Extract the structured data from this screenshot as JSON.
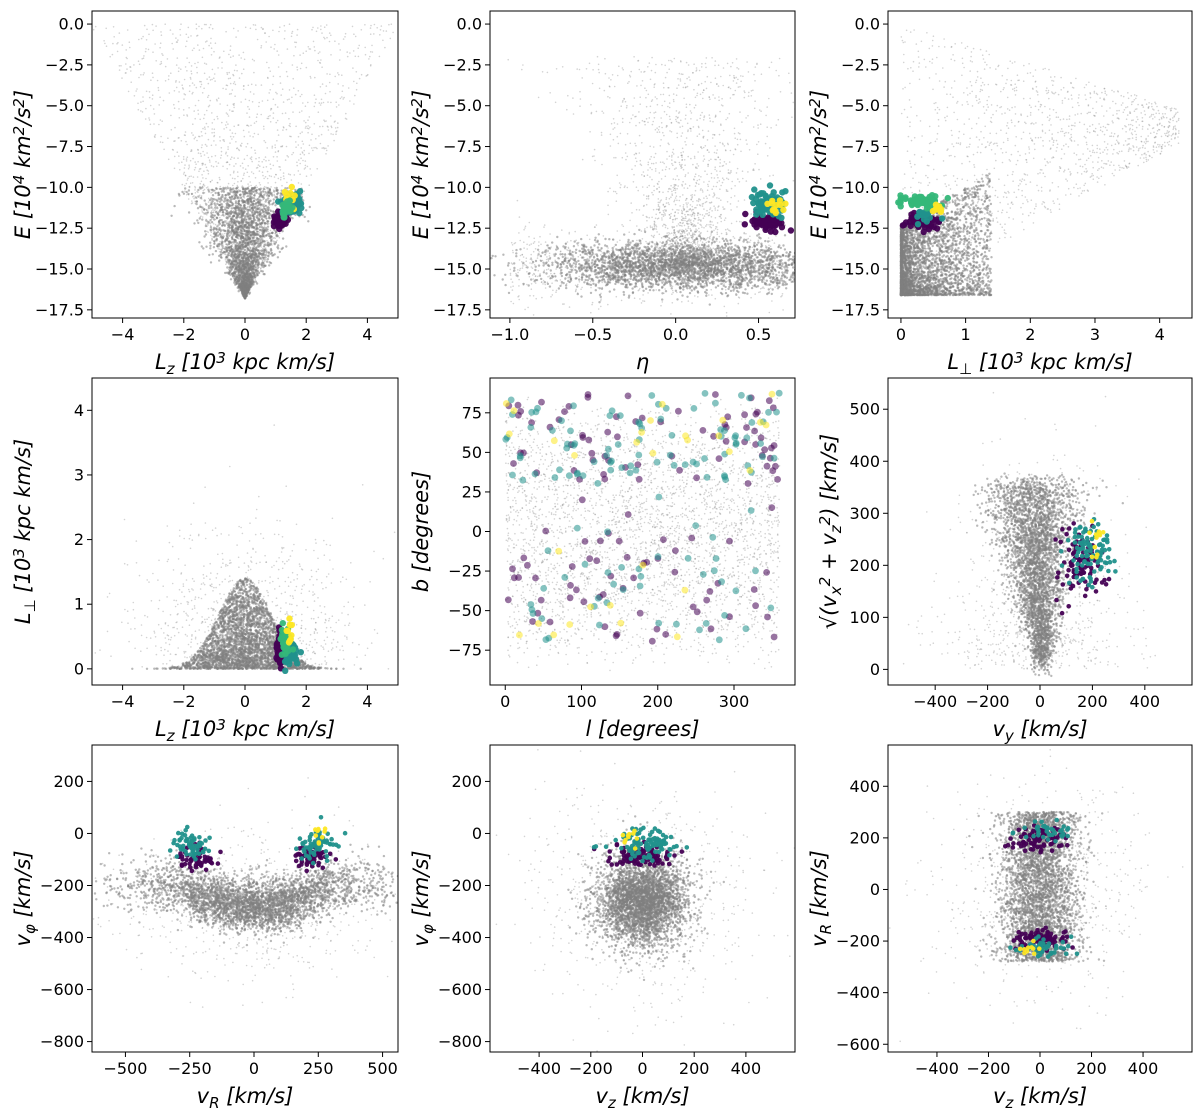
{
  "figure": {
    "title": "",
    "panel_count": 9
  },
  "colors": {
    "background_stars": "#808080",
    "cluster_purple": "#440154",
    "cluster_teal": "#21918c",
    "cluster_green": "#35b779",
    "cluster_yellow": "#fde725"
  },
  "chart_data": [
    {
      "id": "p1",
      "type": "scatter",
      "xlabel": "L_z [10^3 kpc km/s]",
      "ylabel": "E [10^4 km^2/s^2]",
      "xlim": [
        -5,
        5
      ],
      "ylim": [
        -18,
        0.8
      ],
      "xticks": [
        -4,
        -2,
        0,
        2,
        4
      ],
      "yticks": [
        0.0,
        -2.5,
        -5.0,
        -7.5,
        -10.0,
        -12.5,
        -15.0,
        -17.5
      ],
      "xtick_labels": [
        "−4",
        "−2",
        "0",
        "2",
        "4"
      ],
      "ytick_labels": [
        "0.0",
        "−2.5",
        "−5.0",
        "−7.5",
        "−10.0",
        "−12.5",
        "−15.0",
        "−17.5"
      ],
      "background": {
        "shape": "vee",
        "apex_x": 0,
        "apex_y": -16.8,
        "slope_left": 3.3,
        "slope_right": 3.3,
        "top_y": 0,
        "dense_halfwidth": 0.35,
        "dense_top_y": -10.0
      },
      "clusters": [
        {
          "color": "cluster_purple",
          "cx": 1.15,
          "cy": -12.0,
          "sx": 0.1,
          "sy": 0.25,
          "n": 60,
          "dot": "large"
        },
        {
          "color": "cluster_teal",
          "cx": 1.5,
          "cy": -11.0,
          "sx": 0.15,
          "sy": 0.35,
          "n": 70,
          "dot": "large"
        },
        {
          "color": "cluster_yellow",
          "cx": 1.5,
          "cy": -10.7,
          "sx": 0.1,
          "sy": 0.3,
          "n": 12,
          "dot": "large"
        },
        {
          "color": "cluster_green",
          "cx": 1.35,
          "cy": -11.3,
          "sx": 0.1,
          "sy": 0.3,
          "n": 25,
          "dot": "large"
        }
      ]
    },
    {
      "id": "p2",
      "type": "scatter",
      "xlabel": "η",
      "ylabel": "E [10^4 km^2/s^2]",
      "xlim": [
        -1.12,
        0.72
      ],
      "ylim": [
        -18,
        0.8
      ],
      "xticks": [
        -1.0,
        -0.5,
        0.0,
        0.5
      ],
      "yticks": [
        0.0,
        -2.5,
        -5.0,
        -7.5,
        -10.0,
        -12.5,
        -15.0,
        -17.5
      ],
      "xtick_labels": [
        "−1.0",
        "−0.5",
        "0.0",
        "0.5"
      ],
      "ytick_labels": [
        "0.0",
        "−2.5",
        "−5.0",
        "−7.5",
        "−10.0",
        "−12.5",
        "−15.0",
        "−17.5"
      ],
      "background": {
        "shape": "funnel",
        "base_y": -14.8,
        "base_sx": 0.45,
        "base_sy": 0.7,
        "center_x": 0.05,
        "plume_top_y": -2.0
      },
      "clusters": [
        {
          "color": "cluster_purple",
          "cx": 0.55,
          "cy": -12.1,
          "sx": 0.05,
          "sy": 0.25,
          "n": 60,
          "dot": "large"
        },
        {
          "color": "cluster_teal",
          "cx": 0.55,
          "cy": -11.0,
          "sx": 0.05,
          "sy": 0.4,
          "n": 70,
          "dot": "large"
        },
        {
          "color": "cluster_yellow",
          "cx": 0.6,
          "cy": -11.0,
          "sx": 0.03,
          "sy": 0.3,
          "n": 12,
          "dot": "large"
        }
      ]
    },
    {
      "id": "p3",
      "type": "scatter",
      "xlabel": "L_⊥ [10^3 kpc km/s]",
      "ylabel": "E [10^4 km^2/s^2]",
      "xlim": [
        -0.2,
        4.5
      ],
      "ylim": [
        -18,
        0.8
      ],
      "xticks": [
        0,
        1,
        2,
        3,
        4
      ],
      "yticks": [
        0.0,
        -2.5,
        -5.0,
        -7.5,
        -10.0,
        -12.5,
        -15.0,
        -17.5
      ],
      "xtick_labels": [
        "0",
        "1",
        "2",
        "3",
        "4"
      ],
      "ytick_labels": [
        "0.0",
        "−2.5",
        "−5.0",
        "−7.5",
        "−10.0",
        "−12.5",
        "−15.0",
        "−17.5"
      ],
      "background": {
        "shape": "wedge",
        "left_x": 0,
        "bottom_y": -16.8,
        "right_x": 4.3,
        "top_left_y": 0
      },
      "clusters": [
        {
          "color": "cluster_purple",
          "cx": 0.35,
          "cy": -12.1,
          "sx": 0.15,
          "sy": 0.2,
          "n": 60,
          "dot": "large"
        },
        {
          "color": "cluster_teal",
          "cx": 0.45,
          "cy": -11.7,
          "sx": 0.12,
          "sy": 0.2,
          "n": 20,
          "dot": "large"
        },
        {
          "color": "cluster_green",
          "cx": 0.3,
          "cy": -10.9,
          "sx": 0.15,
          "sy": 0.2,
          "n": 70,
          "dot": "large"
        },
        {
          "color": "cluster_yellow",
          "cx": 0.6,
          "cy": -11.3,
          "sx": 0.06,
          "sy": 0.2,
          "n": 10,
          "dot": "large"
        }
      ]
    },
    {
      "id": "p4",
      "type": "scatter",
      "xlabel": "L_z [10^3 kpc km/s]",
      "ylabel": "L_⊥ [10^3 kpc km/s]",
      "xlim": [
        -5,
        5
      ],
      "ylim": [
        -0.25,
        4.5
      ],
      "xticks": [
        -4,
        -2,
        0,
        2,
        4
      ],
      "yticks": [
        0,
        1,
        2,
        3,
        4
      ],
      "xtick_labels": [
        "−4",
        "−2",
        "0",
        "2",
        "4"
      ],
      "ytick_labels": [
        "0",
        "1",
        "2",
        "3",
        "4"
      ],
      "background": {
        "shape": "dome",
        "center_x": 0,
        "sx": 0.9,
        "base_y": 0.0,
        "peak_y": 1.4
      },
      "clusters": [
        {
          "color": "cluster_purple",
          "cx": 1.15,
          "cy": 0.3,
          "sx": 0.08,
          "sy": 0.15,
          "n": 60,
          "dot": "large"
        },
        {
          "color": "cluster_teal",
          "cx": 1.45,
          "cy": 0.25,
          "sx": 0.12,
          "sy": 0.1,
          "n": 60,
          "dot": "large"
        },
        {
          "color": "cluster_green",
          "cx": 1.35,
          "cy": 0.45,
          "sx": 0.1,
          "sy": 0.12,
          "n": 25,
          "dot": "large"
        },
        {
          "color": "cluster_yellow",
          "cx": 1.45,
          "cy": 0.55,
          "sx": 0.06,
          "sy": 0.1,
          "n": 10,
          "dot": "large"
        }
      ]
    },
    {
      "id": "p5",
      "type": "scatter",
      "xlabel": "l [degrees]",
      "ylabel": "b [degrees]",
      "xlim": [
        -20,
        380
      ],
      "ylim": [
        -97,
        97
      ],
      "xticks": [
        0,
        100,
        200,
        300
      ],
      "yticks": [
        75,
        50,
        25,
        0,
        -25,
        -50,
        -75
      ],
      "xtick_labels": [
        "0",
        "100",
        "200",
        "300"
      ],
      "ytick_labels": [
        "75",
        "50",
        "25",
        "0",
        "−25",
        "−50",
        "−75"
      ],
      "background": {
        "shape": "sky",
        "l_min": 0,
        "l_max": 360,
        "b_min": -90,
        "b_max": 90
      },
      "clusters": [
        {
          "color": "cluster_purple",
          "spread": "sky",
          "n": 130,
          "dot": "medium"
        },
        {
          "color": "cluster_teal",
          "spread": "sky",
          "n": 130,
          "dot": "medium"
        },
        {
          "color": "cluster_yellow",
          "spread": "sky",
          "n": 30,
          "dot": "medium"
        }
      ]
    },
    {
      "id": "p6",
      "type": "scatter",
      "xlabel": "v_y [km/s]",
      "ylabel": "√(v_x^2 + v_z^2) [km/s]",
      "xlim": [
        -580,
        580
      ],
      "ylim": [
        -30,
        560
      ],
      "xticks": [
        -400,
        -200,
        0,
        200,
        400
      ],
      "yticks": [
        0,
        100,
        200,
        300,
        400,
        500
      ],
      "xtick_labels": [
        "−400",
        "−200",
        "0",
        "200",
        "400"
      ],
      "ytick_labels": [
        "0",
        "100",
        "200",
        "300",
        "400",
        "500"
      ],
      "background": {
        "shape": "comet",
        "apex_x": 10,
        "apex_y": 5,
        "top_y": 360,
        "sx": 110
      },
      "clusters": [
        {
          "color": "cluster_purple",
          "cx": 150,
          "cy": 200,
          "sx": 45,
          "sy": 30,
          "n": 100,
          "dot": "small"
        },
        {
          "color": "cluster_teal",
          "cx": 190,
          "cy": 225,
          "sx": 45,
          "sy": 30,
          "n": 100,
          "dot": "small"
        },
        {
          "color": "cluster_yellow",
          "cx": 210,
          "cy": 250,
          "sx": 20,
          "sy": 20,
          "n": 12,
          "dot": "small"
        }
      ]
    },
    {
      "id": "p7",
      "type": "scatter",
      "xlabel": "v_R [km/s]",
      "ylabel": "v_φ [km/s]",
      "xlim": [
        -630,
        560
      ],
      "ylim": [
        -840,
        340
      ],
      "xticks": [
        -500,
        -250,
        0,
        250,
        500
      ],
      "yticks": [
        200,
        0,
        -200,
        -400,
        -600,
        -800
      ],
      "xtick_labels": [
        "−500",
        "−250",
        "0",
        "250",
        "500"
      ],
      "ytick_labels": [
        "200",
        "0",
        "−200",
        "−400",
        "−600",
        "−800"
      ],
      "background": {
        "shape": "smile",
        "center_x": 0,
        "sx": 230,
        "center_y": -280,
        "sy": 50,
        "wing_rise": 130
      },
      "clusters": [
        {
          "color": "cluster_purple",
          "cx": -220,
          "cy": -90,
          "sx": 35,
          "sy": 25,
          "n": 60,
          "dot": "small"
        },
        {
          "color": "cluster_teal",
          "cx": -245,
          "cy": -40,
          "sx": 35,
          "sy": 30,
          "n": 60,
          "dot": "small"
        },
        {
          "color": "cluster_purple",
          "cx": 230,
          "cy": -90,
          "sx": 35,
          "sy": 25,
          "n": 60,
          "dot": "small"
        },
        {
          "color": "cluster_teal",
          "cx": 245,
          "cy": -40,
          "sx": 35,
          "sy": 30,
          "n": 60,
          "dot": "small"
        },
        {
          "color": "cluster_yellow",
          "cx": 260,
          "cy": 0,
          "sx": 15,
          "sy": 20,
          "n": 10,
          "dot": "small"
        }
      ]
    },
    {
      "id": "p8",
      "type": "scatter",
      "xlabel": "v_z [km/s]",
      "ylabel": "v_φ [km/s]",
      "xlim": [
        -590,
        590
      ],
      "ylim": [
        -840,
        340
      ],
      "xticks": [
        -400,
        -200,
        0,
        200,
        400
      ],
      "yticks": [
        200,
        0,
        -200,
        -400,
        -600,
        -800
      ],
      "xtick_labels": [
        "−400",
        "−200",
        "0",
        "200",
        "400"
      ],
      "ytick_labels": [
        "200",
        "0",
        "−200",
        "−400",
        "−600",
        "−800"
      ],
      "background": {
        "shape": "blob",
        "center_x": 0,
        "sx": 85,
        "center_y": -260,
        "sy": 85,
        "halo_scale": 2.5
      },
      "clusters": [
        {
          "color": "cluster_purple",
          "cx": 0,
          "cy": -90,
          "sx": 55,
          "sy": 20,
          "n": 110,
          "dot": "small"
        },
        {
          "color": "cluster_teal",
          "cx": 10,
          "cy": -40,
          "sx": 60,
          "sy": 25,
          "n": 100,
          "dot": "small"
        },
        {
          "color": "cluster_yellow",
          "cx": -50,
          "cy": -20,
          "sx": 20,
          "sy": 20,
          "n": 10,
          "dot": "small"
        }
      ]
    },
    {
      "id": "p9",
      "type": "scatter",
      "xlabel": "v_z [km/s]",
      "ylabel": "v_R [km/s]",
      "xlim": [
        -590,
        590
      ],
      "ylim": [
        -630,
        560
      ],
      "xticks": [
        -400,
        -200,
        0,
        200,
        400
      ],
      "yticks": [
        400,
        200,
        0,
        -200,
        -400,
        -600
      ],
      "xtick_labels": [
        "−400",
        "−200",
        "0",
        "200",
        "400"
      ],
      "ytick_labels": [
        "400",
        "200",
        "0",
        "−200",
        "−400",
        "−600"
      ],
      "background": {
        "shape": "column",
        "center_x": 0,
        "sx": 75,
        "y_min": -280,
        "y_max": 300
      },
      "clusters": [
        {
          "color": "cluster_purple",
          "cx": 0,
          "cy": 195,
          "sx": 55,
          "sy": 20,
          "n": 80,
          "dot": "small"
        },
        {
          "color": "cluster_teal",
          "cx": 20,
          "cy": 225,
          "sx": 55,
          "sy": 20,
          "n": 40,
          "dot": "small"
        },
        {
          "color": "cluster_purple",
          "cx": 0,
          "cy": -195,
          "sx": 55,
          "sy": 20,
          "n": 80,
          "dot": "small"
        },
        {
          "color": "cluster_teal",
          "cx": 20,
          "cy": -225,
          "sx": 55,
          "sy": 20,
          "n": 50,
          "dot": "small"
        },
        {
          "color": "cluster_yellow",
          "cx": -40,
          "cy": -230,
          "sx": 25,
          "sy": 15,
          "n": 10,
          "dot": "small"
        }
      ]
    }
  ]
}
